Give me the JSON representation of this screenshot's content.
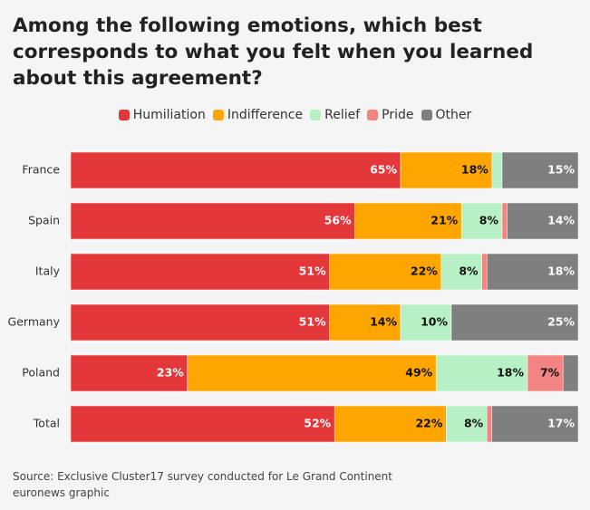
{
  "chart_data": {
    "type": "stacked-bar-horizontal",
    "title": "Among the following emotions, which best corresponds to what you felt when you learned about this agreement?",
    "categories": [
      "France",
      "Spain",
      "Italy",
      "Germany",
      "Poland",
      "Total"
    ],
    "xlim": [
      0,
      100
    ],
    "series": [
      {
        "name": "Humiliation",
        "color": "#e3373a",
        "values": [
          65,
          56,
          51,
          51,
          23,
          52
        ],
        "value_labels": [
          "65%",
          "56%",
          "51%",
          "51%",
          "23%",
          "52%"
        ]
      },
      {
        "name": "Indifference",
        "color": "#ffa500",
        "values": [
          18,
          21,
          22,
          14,
          49,
          22
        ],
        "value_labels": [
          "18%",
          "21%",
          "22%",
          "14%",
          "49%",
          "22%"
        ]
      },
      {
        "name": "Relief",
        "color": "#b8f0c6",
        "values": [
          2,
          8,
          8,
          10,
          18,
          8
        ],
        "value_labels": [
          null,
          "8%",
          "8%",
          "10%",
          "18%",
          "8%"
        ]
      },
      {
        "name": "Pride",
        "color": "#f28482",
        "values": [
          0,
          1,
          1,
          0,
          7,
          1
        ],
        "value_labels": [
          null,
          null,
          null,
          null,
          "7%",
          null
        ]
      },
      {
        "name": "Other",
        "color": "#7f7f7f",
        "values": [
          15,
          14,
          18,
          25,
          3,
          17
        ],
        "value_labels": [
          "15%",
          "14%",
          "18%",
          "25%",
          null,
          "17%"
        ]
      }
    ],
    "source": "Source: Exclusive Cluster17 survey conducted for Le Grand Continent",
    "credit": "euronews graphic"
  }
}
